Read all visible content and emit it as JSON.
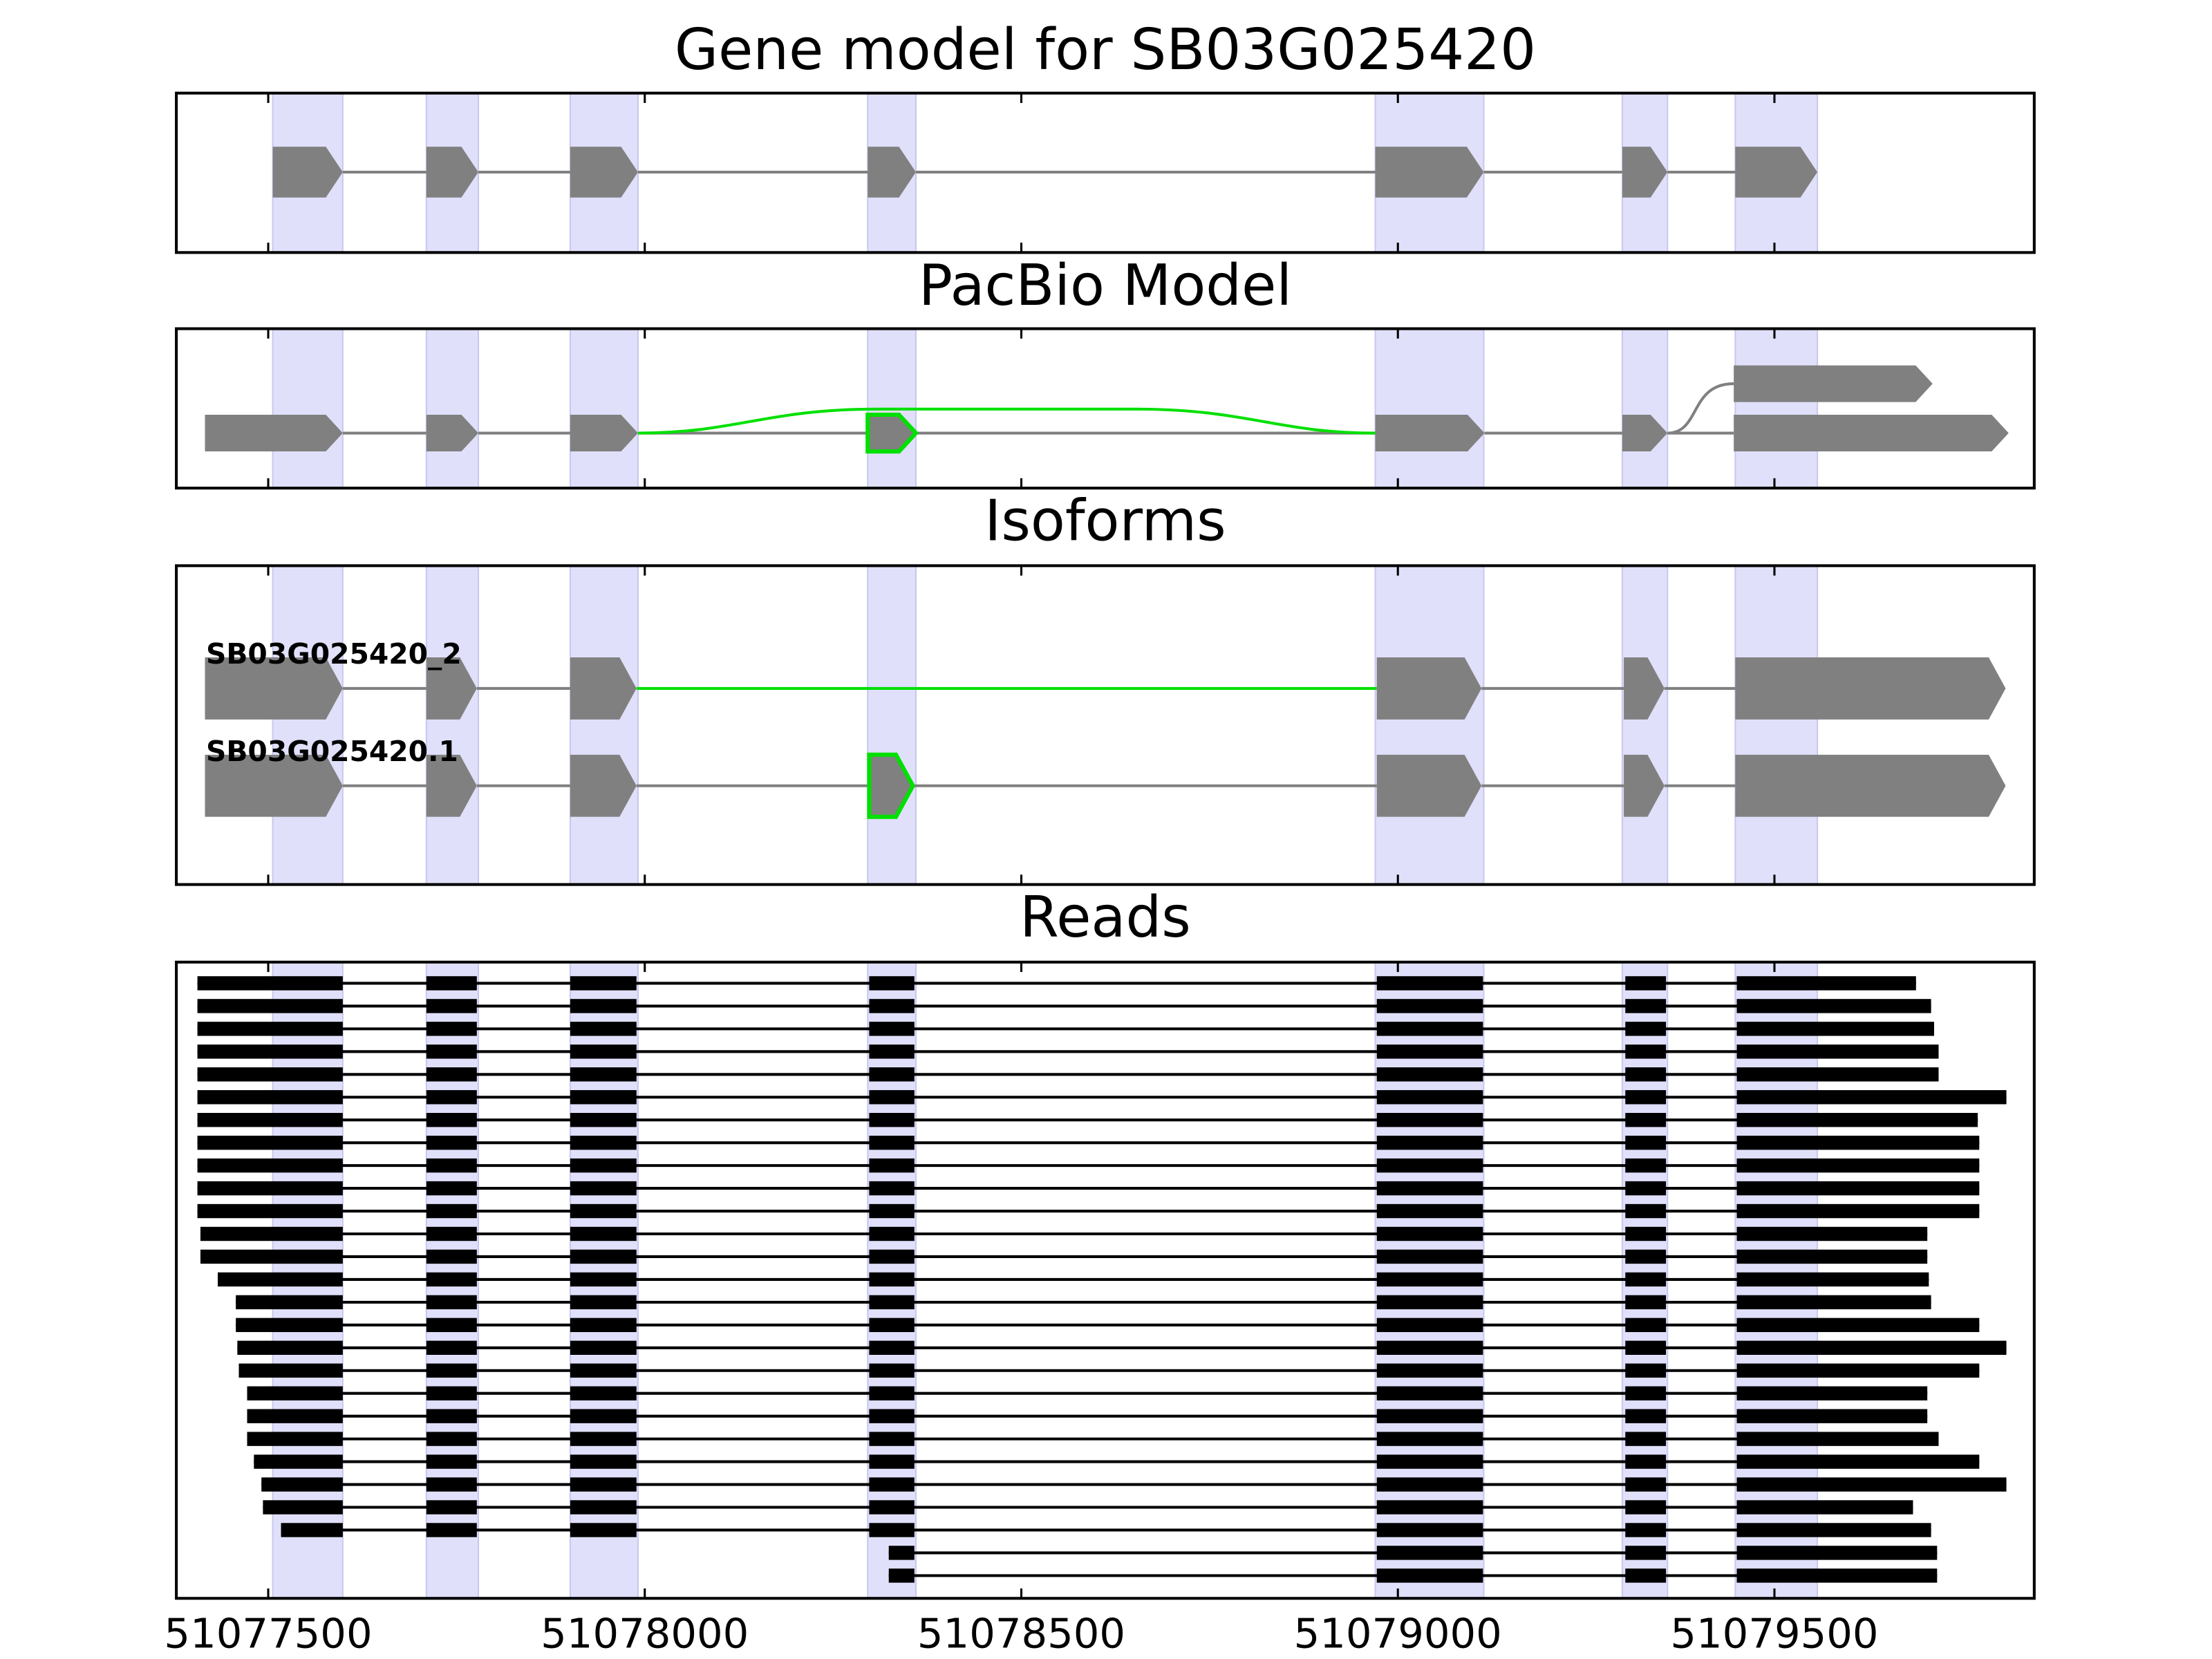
{
  "chart_data": [
    {
      "type": "gene_model",
      "title": "Gene model for SB03G025420",
      "xlim": [
        51077378,
        51079845
      ],
      "xticks": [
        51077500,
        51078000,
        51078500,
        51079000,
        51079500
      ],
      "color": "#808080",
      "highlight_color": "#e0e0fb",
      "exons": [
        [
          51077506,
          51077599
        ],
        [
          51077710,
          51077779
        ],
        [
          51077901,
          51077991
        ],
        [
          51078296,
          51078360
        ],
        [
          51078970,
          51079114
        ],
        [
          51079298,
          51079358
        ],
        [
          51079448,
          51079557
        ]
      ]
    },
    {
      "type": "splice_graph",
      "title": "PacBio Model",
      "xlim": [
        51077378,
        51079845
      ],
      "xticks": [
        51077500,
        51078000,
        51078500,
        51079000,
        51079500
      ],
      "color": "#808080",
      "exons": [
        {
          "start": 51077416,
          "end": 51077599
        },
        {
          "start": 51077710,
          "end": 51077779
        },
        {
          "start": 51077901,
          "end": 51077991
        },
        {
          "start": 51078296,
          "end": 51078360,
          "color": "#00e000"
        },
        {
          "start": 51078970,
          "end": 51079115
        },
        {
          "start": 51079298,
          "end": 51079358
        },
        {
          "start": 51079446,
          "end": 51079811
        }
      ],
      "branch_exons": [
        {
          "start": 51079446,
          "end": 51079710
        }
      ]
    },
    {
      "type": "isoforms",
      "title": "Isoforms",
      "xlim": [
        51077378,
        51079845
      ],
      "xticks": [
        51077500,
        51078000,
        51078500,
        51079000,
        51079500
      ],
      "color": "#808080",
      "isoforms": [
        {
          "name": "SB03G025420_2",
          "exons": [
            {
              "start": 51077416,
              "end": 51077599
            },
            {
              "start": 51077710,
              "end": 51077777
            },
            {
              "start": 51077901,
              "end": 51077989
            },
            {
              "start": 51078972,
              "end": 51079111,
              "junction_color": "#00e000"
            },
            {
              "start": 51079300,
              "end": 51079354
            },
            {
              "start": 51079448,
              "end": 51079807
            }
          ]
        },
        {
          "name": "SB03G025420.1",
          "exons": [
            {
              "start": 51077416,
              "end": 51077599
            },
            {
              "start": 51077710,
              "end": 51077777
            },
            {
              "start": 51077901,
              "end": 51077989
            },
            {
              "start": 51078298,
              "end": 51078356,
              "color": "#00e000"
            },
            {
              "start": 51078972,
              "end": 51079111
            },
            {
              "start": 51079300,
              "end": 51079354
            },
            {
              "start": 51079448,
              "end": 51079807
            }
          ]
        }
      ]
    },
    {
      "type": "reads",
      "title": "Reads",
      "xlim": [
        51077378,
        51079845
      ],
      "xticks": [
        51077500,
        51078000,
        51078500,
        51079000,
        51079500
      ],
      "color": "#000000",
      "introns": [
        [
          51077599,
          51077710
        ],
        [
          51077777,
          51077901
        ],
        [
          51077989,
          51078298
        ],
        [
          51078358,
          51078972
        ],
        [
          51079113,
          51079302
        ],
        [
          51079356,
          51079450
        ]
      ],
      "reads": [
        [
          51077406,
          51079688
        ],
        [
          51077406,
          51079708
        ],
        [
          51077406,
          51079712
        ],
        [
          51077406,
          51079718
        ],
        [
          51077406,
          51079718
        ],
        [
          51077406,
          51079808
        ],
        [
          51077406,
          51079770
        ],
        [
          51077406,
          51079772
        ],
        [
          51077406,
          51079772
        ],
        [
          51077406,
          51079772
        ],
        [
          51077406,
          51079772
        ],
        [
          51077410,
          51079703
        ],
        [
          51077410,
          51079703
        ],
        [
          51077433,
          51079705
        ],
        [
          51077457,
          51079708
        ],
        [
          51077457,
          51079772
        ],
        [
          51077459,
          51079808
        ],
        [
          51077461,
          51079772
        ],
        [
          51077472,
          51079703
        ],
        [
          51077472,
          51079703
        ],
        [
          51077472,
          51079718
        ],
        [
          51077481,
          51079772
        ],
        [
          51077491,
          51079808
        ],
        [
          51077493,
          51079684
        ],
        [
          51077517,
          51079708
        ],
        [
          51078324,
          51079716
        ],
        [
          51078324,
          51079716
        ]
      ]
    }
  ]
}
